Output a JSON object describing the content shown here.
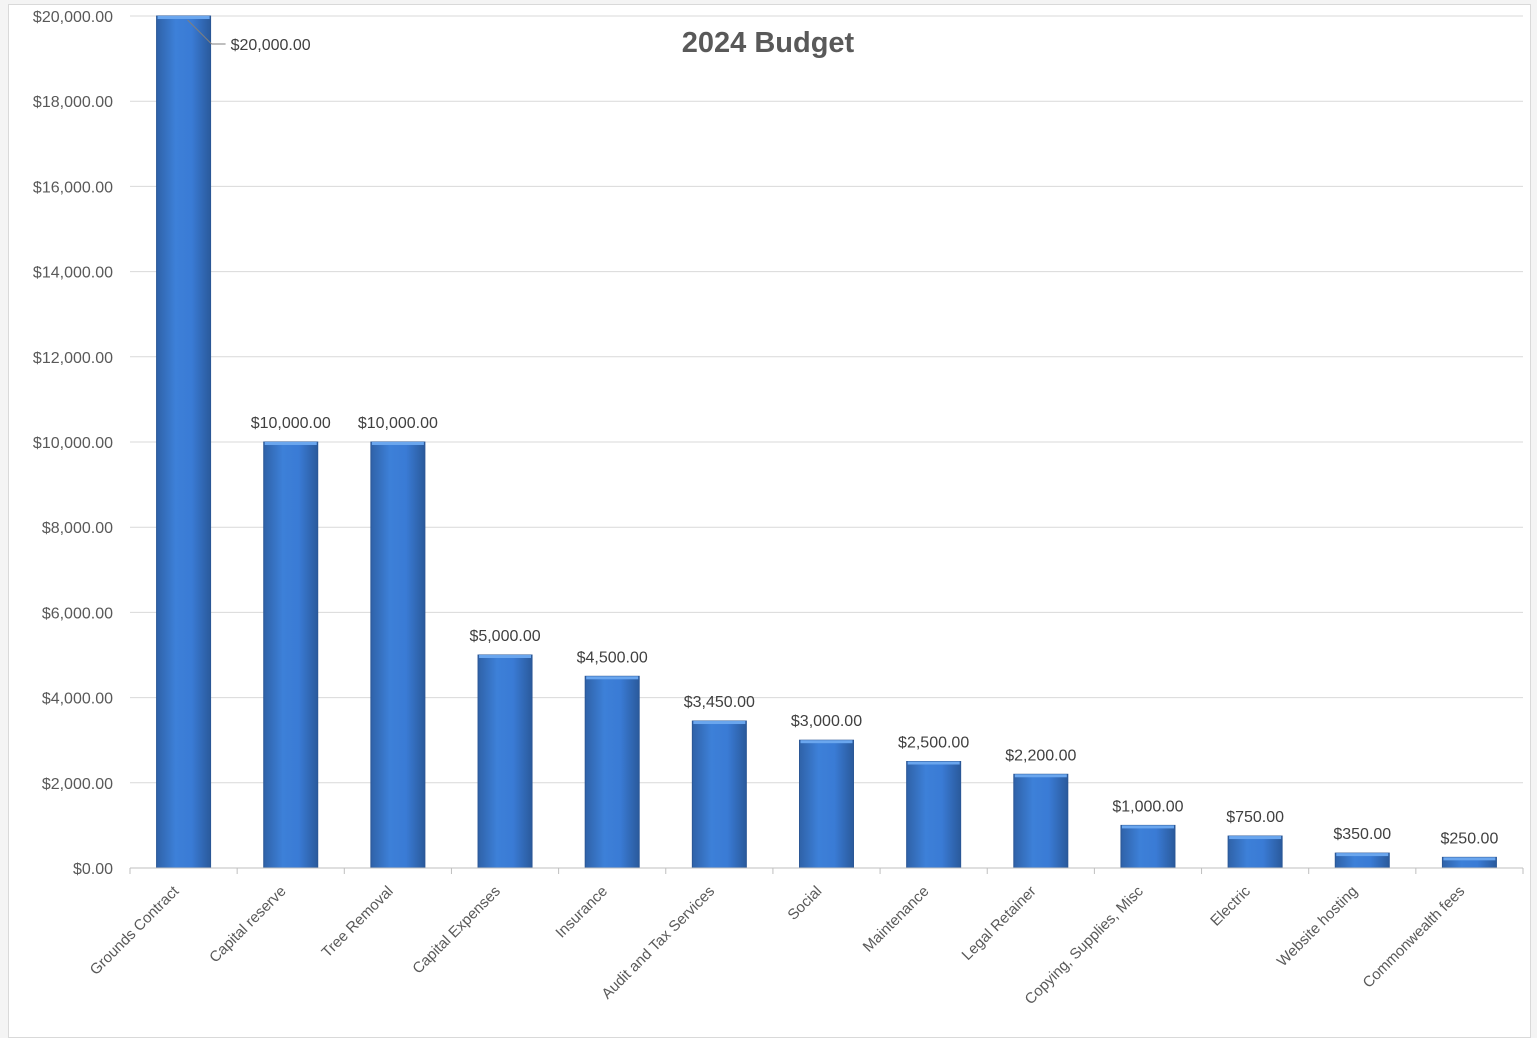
{
  "chart_data": {
    "type": "bar",
    "title": "2024 Budget",
    "xlabel": "",
    "ylabel": "",
    "ylim": [
      0,
      20000
    ],
    "yticks": [
      0,
      2000,
      4000,
      6000,
      8000,
      10000,
      12000,
      14000,
      16000,
      18000,
      20000
    ],
    "ytick_labels": [
      "$0.00",
      "$2,000.00",
      "$4,000.00",
      "$6,000.00",
      "$8,000.00",
      "$10,000.00",
      "$12,000.00",
      "$14,000.00",
      "$16,000.00",
      "$18,000.00",
      "$20,000.00"
    ],
    "grid": true,
    "legend": "none",
    "bar_color": "#3a7bd5",
    "categories": [
      "Grounds Contract",
      "Capital reserve",
      "Tree Removal",
      "Capital Expenses",
      "Insurance",
      "Audit and Tax Services",
      "Social",
      "Maintenance",
      "Legal Retainer",
      "Copying, Supplies, Misc",
      "Electric",
      "Website hosting",
      "Commonwealth fees"
    ],
    "values": [
      20000,
      10000,
      10000,
      5000,
      4500,
      3450,
      3000,
      2500,
      2200,
      1000,
      750,
      350,
      250
    ],
    "data_labels": [
      "$20,000.00",
      "$10,000.00",
      "$10,000.00",
      "$5,000.00",
      "$4,500.00",
      "$3,450.00",
      "$3,000.00",
      "$2,500.00",
      "$2,200.00",
      "$1,000.00",
      "$750.00",
      "$350.00",
      "$250.00"
    ]
  }
}
